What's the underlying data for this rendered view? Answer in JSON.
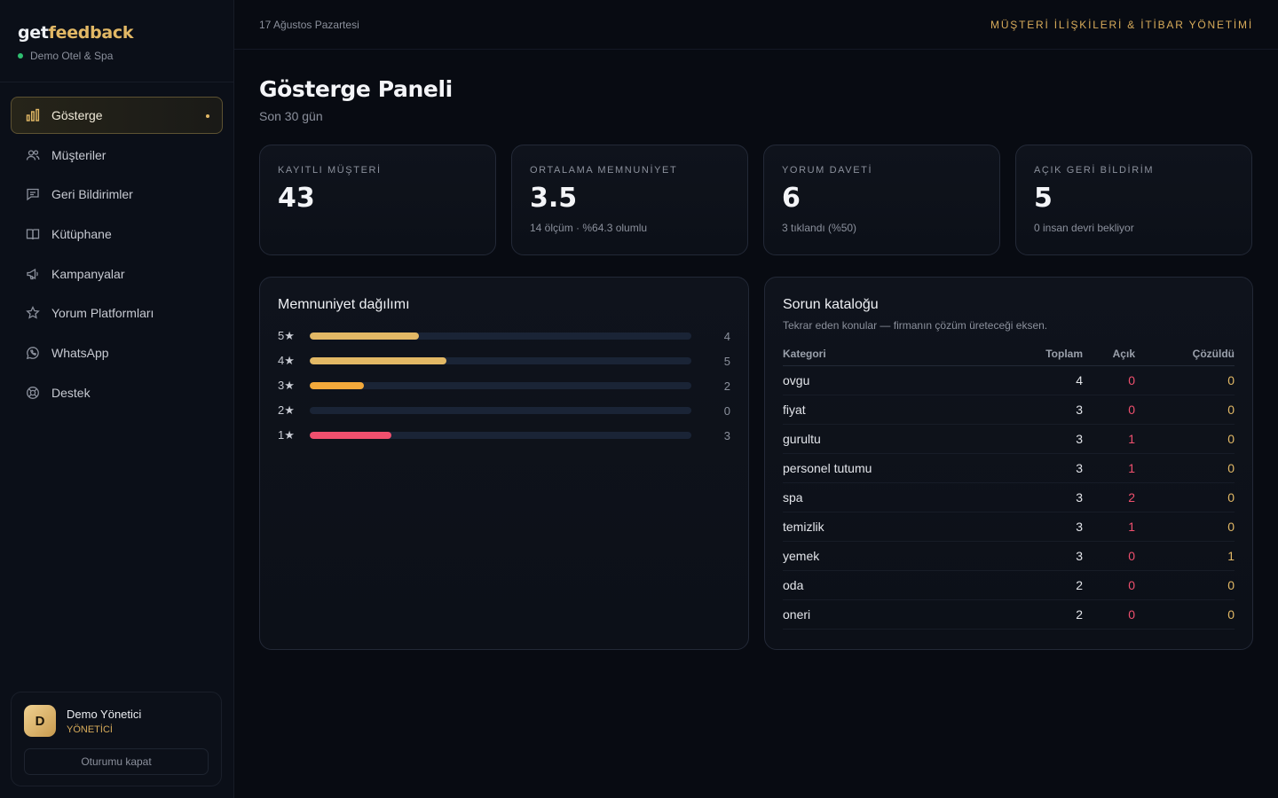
{
  "brand": {
    "logo_part1": "get",
    "logo_part2": "feedback",
    "org": "Demo Otel & Spa"
  },
  "nav": [
    {
      "label": "Gösterge",
      "icon": "bar-chart-icon",
      "active": true
    },
    {
      "label": "Müşteriler",
      "icon": "users-icon"
    },
    {
      "label": "Geri Bildirimler",
      "icon": "message-icon"
    },
    {
      "label": "Kütüphane",
      "icon": "book-icon"
    },
    {
      "label": "Kampanyalar",
      "icon": "megaphone-icon"
    },
    {
      "label": "Yorum Platformları",
      "icon": "star-icon"
    },
    {
      "label": "WhatsApp",
      "icon": "whatsapp-icon"
    },
    {
      "label": "Destek",
      "icon": "lifebuoy-icon"
    }
  ],
  "user": {
    "initial": "D",
    "name": "Demo Yönetici",
    "role": "YÖNETİCİ",
    "logout": "Oturumu kapat"
  },
  "topbar": {
    "date": "17 Ağustos Pazartesi",
    "tagline": "MÜŞTERİ İLİŞKİLERİ & İTİBAR YÖNETİMİ"
  },
  "page": {
    "title": "Gösterge Paneli",
    "subtitle": "Son 30 gün"
  },
  "stats": [
    {
      "label": "KAYITLI MÜŞTERİ",
      "value": "43",
      "note": ""
    },
    {
      "label": "ORTALAMA MEMNUNİYET",
      "value": "3.5",
      "note": "14 ölçüm · %64.3 olumlu"
    },
    {
      "label": "YORUM DAVETİ",
      "value": "6",
      "note": "3 tıklandı (%50)"
    },
    {
      "label": "AÇIK GERİ BİLDİRİM",
      "value": "5",
      "note": "0 insan devri bekliyor"
    }
  ],
  "distribution": {
    "title": "Memnuniyet dağılımı",
    "rows": [
      {
        "label": "5★",
        "count": 4,
        "color": "#e2b865"
      },
      {
        "label": "4★",
        "count": 5,
        "color": "#e2b865"
      },
      {
        "label": "3★",
        "count": 2,
        "color": "#f2a93b"
      },
      {
        "label": "2★",
        "count": 0,
        "color": "#f2a93b"
      },
      {
        "label": "1★",
        "count": 3,
        "color": "#f0506e"
      }
    ],
    "max": 14
  },
  "catalog": {
    "title": "Sorun kataloğu",
    "subtitle": "Tekrar eden konular — firmanın çözüm üreteceği eksen.",
    "headers": {
      "category": "Kategori",
      "total": "Toplam",
      "open": "Açık",
      "resolved": "Çözüldü"
    },
    "rows": [
      {
        "category": "ovgu",
        "total": "4",
        "open": "0",
        "resolved": "0"
      },
      {
        "category": "fiyat",
        "total": "3",
        "open": "0",
        "resolved": "0"
      },
      {
        "category": "gurultu",
        "total": "3",
        "open": "1",
        "resolved": "0"
      },
      {
        "category": "personel tutumu",
        "total": "3",
        "open": "1",
        "resolved": "0"
      },
      {
        "category": "spa",
        "total": "3",
        "open": "2",
        "resolved": "0"
      },
      {
        "category": "temizlik",
        "total": "3",
        "open": "1",
        "resolved": "0"
      },
      {
        "category": "yemek",
        "total": "3",
        "open": "0",
        "resolved": "1"
      },
      {
        "category": "oda",
        "total": "2",
        "open": "0",
        "resolved": "0"
      },
      {
        "category": "oneri",
        "total": "2",
        "open": "0",
        "resolved": "0"
      }
    ]
  }
}
